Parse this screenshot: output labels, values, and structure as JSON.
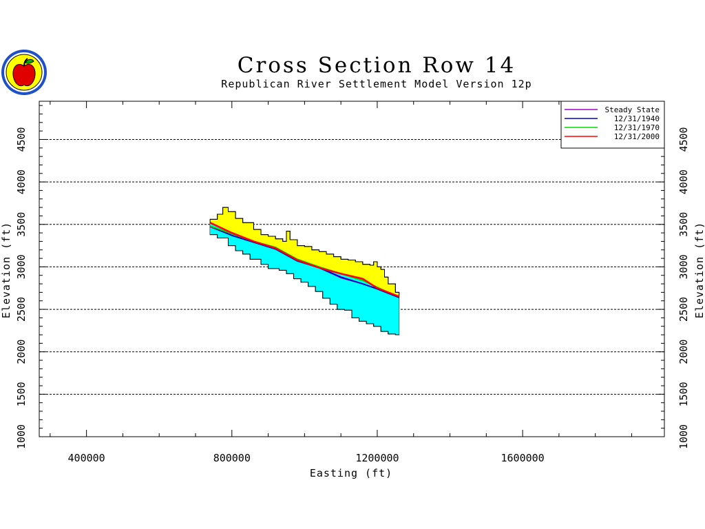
{
  "chart_data": {
    "type": "area",
    "title": "Cross Section Row 14",
    "subtitle": "Republican River Settlement Model Version 12p",
    "xlabel": "Easting (ft)",
    "ylabel": "Elevation (ft)",
    "xlim": [
      270000,
      1990000
    ],
    "ylim": [
      1000,
      4950
    ],
    "x_ticks": [
      400000,
      800000,
      1200000,
      1600000
    ],
    "y_ticks": [
      1000,
      1500,
      2000,
      2500,
      3000,
      3500,
      4000,
      4500
    ],
    "grid": "horizontal-dashed",
    "legend_position": "top-right",
    "colors": {
      "aquifer_saturated": "#00ffff",
      "aquifer_unsaturated": "#ffff00",
      "steady_state": "#a000c8",
      "y1940": "#0000c8",
      "y1970": "#00dc00",
      "y2000": "#ff0000"
    },
    "ground_surface": {
      "x": [
        740000,
        760000,
        775000,
        790000,
        810000,
        830000,
        860000,
        880000,
        900000,
        920000,
        940000,
        950000,
        960000,
        980000,
        1000000,
        1020000,
        1040000,
        1060000,
        1080000,
        1100000,
        1120000,
        1140000,
        1160000,
        1180000,
        1190000,
        1200000,
        1210000,
        1220000,
        1230000,
        1250000,
        1260000
      ],
      "y": [
        3560,
        3620,
        3700,
        3650,
        3570,
        3520,
        3440,
        3380,
        3360,
        3330,
        3300,
        3420,
        3320,
        3250,
        3240,
        3200,
        3180,
        3150,
        3120,
        3090,
        3080,
        3060,
        3030,
        3020,
        3060,
        3000,
        2970,
        2880,
        2800,
        2700,
        2650
      ]
    },
    "aquifer_base": {
      "x": [
        740000,
        760000,
        790000,
        810000,
        830000,
        850000,
        880000,
        900000,
        930000,
        950000,
        970000,
        990000,
        1010000,
        1030000,
        1050000,
        1070000,
        1090000,
        1110000,
        1130000,
        1150000,
        1170000,
        1190000,
        1210000,
        1230000,
        1250000,
        1260000
      ],
      "y": [
        3380,
        3340,
        3250,
        3190,
        3150,
        3090,
        3030,
        2980,
        2960,
        2920,
        2860,
        2820,
        2770,
        2710,
        2630,
        2560,
        2500,
        2490,
        2400,
        2360,
        2330,
        2300,
        2240,
        2210,
        2200,
        2200
      ]
    },
    "series": [
      {
        "name": "Steady State",
        "x": [
          740000,
          800000,
          860000,
          920000,
          980000,
          1040000,
          1100000,
          1160000,
          1200000,
          1230000,
          1260000
        ],
        "y": [
          3470,
          3370,
          3290,
          3210,
          3070,
          2990,
          2870,
          2800,
          2740,
          2690,
          2640
        ]
      },
      {
        "name": "12/31/1940",
        "x": [
          740000,
          800000,
          860000,
          920000,
          980000,
          1040000,
          1100000,
          1160000,
          1200000,
          1230000,
          1260000
        ],
        "y": [
          3480,
          3370,
          3290,
          3210,
          3070,
          2990,
          2880,
          2800,
          2740,
          2690,
          2640
        ]
      },
      {
        "name": "12/31/1970",
        "x": [
          740000,
          800000,
          860000,
          920000,
          980000,
          1040000,
          1100000,
          1160000,
          1200000,
          1230000,
          1260000
        ],
        "y": [
          3480,
          3390,
          3300,
          3230,
          3090,
          3000,
          2920,
          2840,
          2760,
          2700,
          2650
        ]
      },
      {
        "name": "12/31/2000",
        "x": [
          740000,
          800000,
          860000,
          920000,
          980000,
          1040000,
          1100000,
          1160000,
          1200000,
          1230000,
          1260000
        ],
        "y": [
          3520,
          3400,
          3300,
          3220,
          3080,
          2990,
          2920,
          2860,
          2750,
          2700,
          2650
        ]
      }
    ]
  }
}
